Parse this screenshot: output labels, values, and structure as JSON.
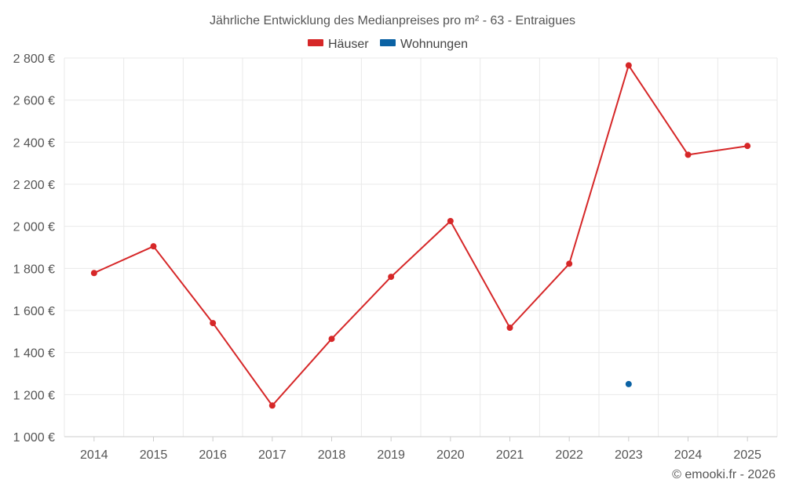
{
  "chart_data": {
    "type": "line",
    "title": "Jährliche Entwicklung des Medianpreises pro m² - 63 - Entraigues",
    "categories": [
      "2014",
      "2015",
      "2016",
      "2017",
      "2018",
      "2019",
      "2020",
      "2021",
      "2022",
      "2023",
      "2024",
      "2025"
    ],
    "series": [
      {
        "name": "Häuser",
        "color": "#d62728",
        "values": [
          1778,
          1905,
          1540,
          1148,
          1465,
          1760,
          2025,
          1518,
          1822,
          2765,
          2340,
          2382
        ]
      },
      {
        "name": "Wohnungen",
        "color": "#0b62a4",
        "values": [
          null,
          null,
          null,
          null,
          null,
          null,
          null,
          null,
          null,
          1250,
          null,
          null
        ]
      }
    ],
    "ylim": [
      1000,
      2800
    ],
    "yticks": [
      1000,
      1200,
      1400,
      1600,
      1800,
      2000,
      2200,
      2400,
      2600,
      2800
    ],
    "ytick_labels": [
      "1 000 €",
      "1 200 €",
      "1 400 €",
      "1 600 €",
      "1 800 €",
      "2 000 €",
      "2 200 €",
      "2 400 €",
      "2 600 €",
      "2 800 €"
    ],
    "xlabel": "",
    "ylabel": "",
    "legend_position": "top-center",
    "grid": true
  },
  "credit": "© emooki.fr - 2026"
}
